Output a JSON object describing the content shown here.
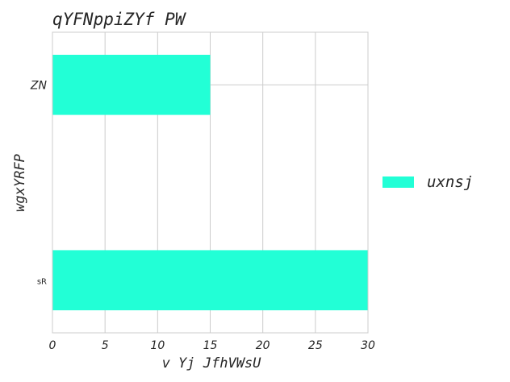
{
  "chart_data": {
    "type": "bar",
    "orientation": "horizontal",
    "title": "qYFNppiZYf PW",
    "xlabel": "v Yj  JfhVWsU",
    "ylabel": "wgxYRFP",
    "categories": [
      "ZN",
      "sR"
    ],
    "series": [
      {
        "name": "uxnsj",
        "color": "#22ffd6",
        "values": [
          15,
          30
        ]
      }
    ],
    "xlim": [
      0,
      30
    ],
    "xticks": [
      0,
      5,
      10,
      15,
      20,
      25,
      30
    ],
    "grid": true,
    "legend_position": "right"
  }
}
